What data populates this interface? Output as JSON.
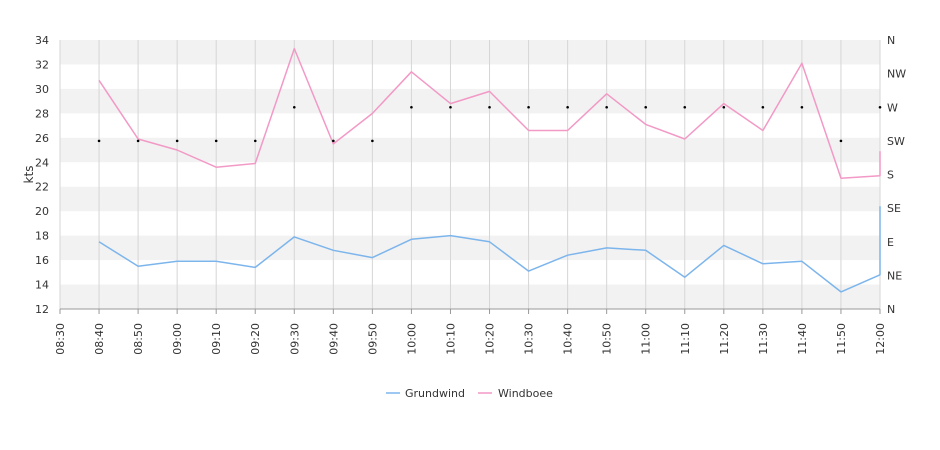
{
  "chart_data": {
    "type": "line",
    "title": "",
    "xlabel": "",
    "ylabel": "kts",
    "ylim": [
      12,
      34
    ],
    "y_ticks": [
      "12",
      "14",
      "16",
      "18",
      "20",
      "22",
      "24",
      "26",
      "28",
      "30",
      "32",
      "34"
    ],
    "x_range": [
      "08:30",
      "12:00"
    ],
    "x_ticks": [
      "08:30",
      "08:40",
      "08:50",
      "09:00",
      "09:10",
      "09:20",
      "09:30",
      "09:40",
      "09:50",
      "10:00",
      "10:10",
      "10:20",
      "10:30",
      "10:40",
      "10:50",
      "11:00",
      "11:10",
      "11:20",
      "11:30",
      "11:40",
      "11:50",
      "12:00"
    ],
    "grid": "vertical lines at x ticks, alternating horizontal bands",
    "right_axis": {
      "label": "",
      "direction_labels": [
        "N",
        "NE",
        "E",
        "SE",
        "S",
        "SW",
        "W",
        "NW",
        "N"
      ]
    },
    "series": [
      {
        "name": "Grundwind",
        "color": "#7cb5ec",
        "x": [
          "08:40",
          "08:50",
          "09:00",
          "09:10",
          "09:20",
          "09:30",
          "09:40",
          "09:50",
          "10:00",
          "10:10",
          "10:20",
          "10:30",
          "10:40",
          "10:50",
          "11:00",
          "11:10",
          "11:20",
          "11:30",
          "11:40",
          "11:50",
          "12:00",
          "12:00"
        ],
        "values": [
          17.5,
          15.5,
          15.9,
          15.9,
          15.4,
          17.9,
          16.8,
          16.2,
          17.7,
          18.0,
          17.5,
          15.1,
          16.4,
          17.0,
          16.8,
          14.6,
          17.2,
          15.7,
          15.9,
          13.4,
          14.8,
          20.4
        ]
      },
      {
        "name": "Windboee",
        "color": "#f299c6",
        "x": [
          "08:40",
          "08:50",
          "09:00",
          "09:10",
          "09:20",
          "09:30",
          "09:40",
          "09:50",
          "10:00",
          "10:10",
          "10:20",
          "10:30",
          "10:40",
          "10:50",
          "11:00",
          "11:10",
          "11:20",
          "11:30",
          "11:40",
          "11:50",
          "12:00",
          "12:00"
        ],
        "values": [
          30.7,
          25.9,
          25.0,
          23.6,
          23.9,
          33.3,
          25.5,
          28.0,
          31.4,
          28.8,
          29.8,
          26.6,
          26.6,
          29.6,
          27.1,
          25.9,
          28.8,
          26.6,
          32.1,
          22.7,
          22.9,
          24.9
        ]
      }
    ],
    "direction_series": {
      "x": [
        "08:40",
        "08:50",
        "09:00",
        "09:10",
        "09:20",
        "09:30",
        "09:40",
        "09:50",
        "10:00",
        "10:10",
        "10:20",
        "10:30",
        "10:40",
        "10:50",
        "11:00",
        "11:10",
        "11:20",
        "11:30",
        "11:40",
        "11:50",
        "12:00"
      ],
      "values": [
        225,
        225,
        225,
        225,
        225,
        270,
        225,
        225,
        270,
        270,
        270,
        270,
        270,
        270,
        270,
        270,
        270,
        270,
        270,
        225,
        270
      ]
    },
    "legend": {
      "position": "bottom-center",
      "entries": [
        "Grundwind",
        "Windboee"
      ]
    }
  }
}
